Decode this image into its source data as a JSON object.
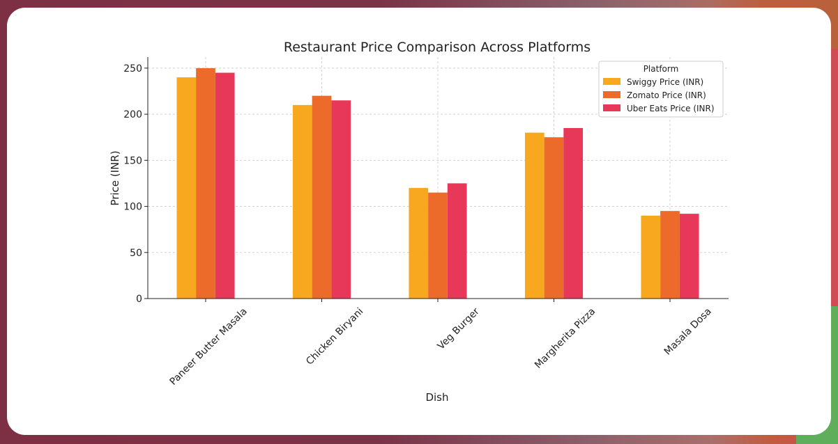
{
  "chart_data": {
    "type": "bar",
    "title": "Restaurant Price Comparison Across Platforms",
    "xlabel": "Dish",
    "ylabel": "Price (INR)",
    "ylim": [
      0,
      262
    ],
    "yticks": [
      0,
      50,
      100,
      150,
      200,
      250
    ],
    "categories": [
      "Paneer Butter Masala",
      "Chicken Biryani",
      "Veg Burger",
      "Margherita Pizza",
      "Masala Dosa"
    ],
    "series": [
      {
        "name": "Swiggy Price (INR)",
        "color": "#f7a81f",
        "values": [
          240,
          210,
          120,
          180,
          90
        ]
      },
      {
        "name": "Zomato Price (INR)",
        "color": "#ec6a2a",
        "values": [
          250,
          220,
          115,
          175,
          95
        ]
      },
      {
        "name": "Uber Eats Price (INR)",
        "color": "#e8385a",
        "values": [
          245,
          215,
          125,
          185,
          92
        ]
      }
    ],
    "legend": {
      "title": "Platform",
      "position": "top-right"
    },
    "grid": true
  }
}
